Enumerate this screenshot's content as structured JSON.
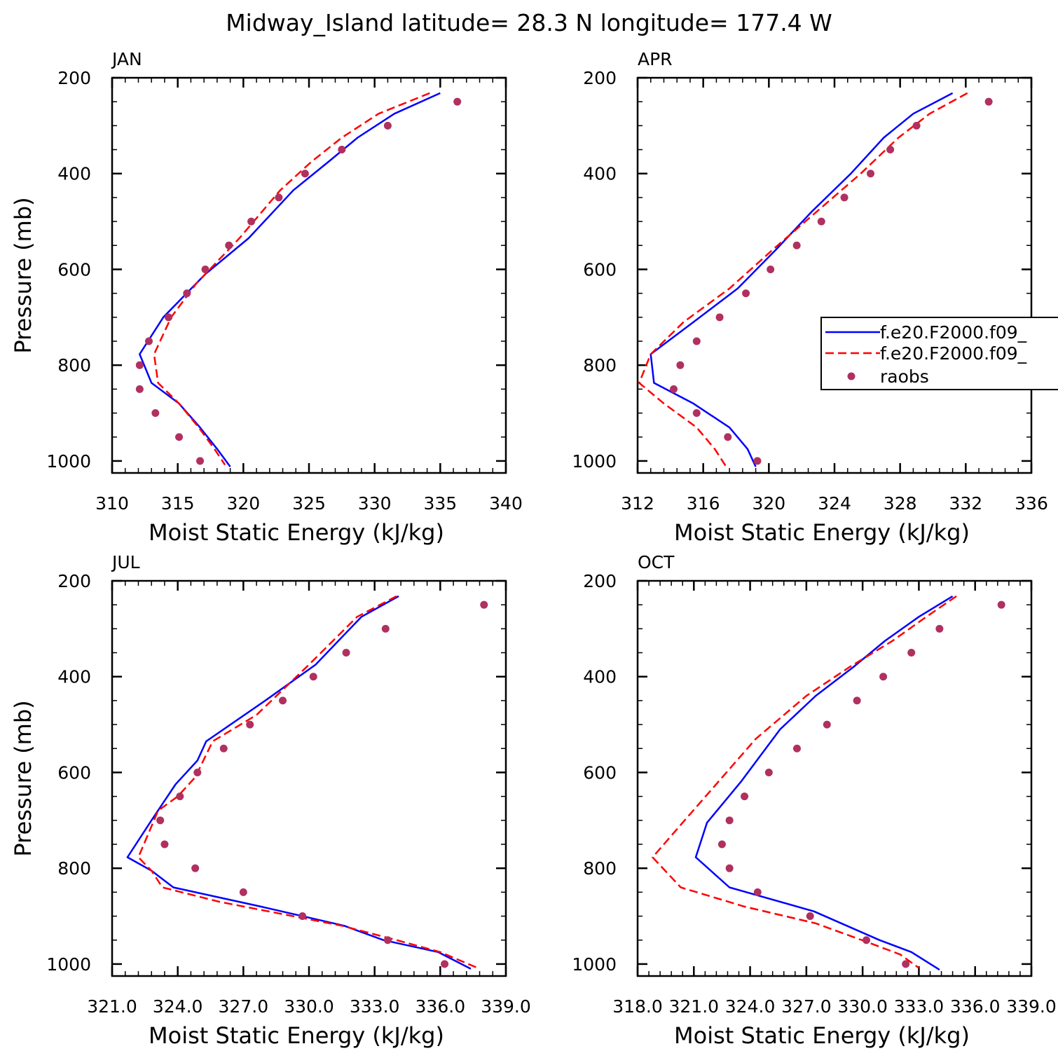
{
  "title": "Midway_Island  latitude= 28.3 N longitude= 177.4 W",
  "colors": {
    "solid": "#0000ff",
    "dashed": "#ff0000",
    "obs": "#b03060"
  },
  "legend": {
    "entries": [
      {
        "label": "f.e20.F2000.f09_",
        "style": "solid"
      },
      {
        "label": "f.e20.F2000.f09_",
        "style": "dashed"
      },
      {
        "label": "raobs",
        "style": "dot"
      }
    ]
  },
  "chart_data": [
    {
      "type": "line",
      "panel": "JAN",
      "xlabel": "Moist Static Energy (kJ/kg)",
      "ylabel": "Pressure (mb)",
      "xlim": [
        310,
        340
      ],
      "ylim": [
        200,
        1025
      ],
      "y_inverted": true,
      "xticks": [
        310,
        315,
        320,
        325,
        330,
        335,
        340
      ],
      "xtick_labels": [
        "310",
        "315",
        "320",
        "325",
        "330",
        "335",
        "340"
      ],
      "yticks": [
        200,
        400,
        600,
        800,
        1000
      ],
      "ytick_labels": [
        "200",
        "400",
        "600",
        "800",
        "1000"
      ],
      "series": [
        {
          "style": "solid",
          "points": [
            [
              335.0,
              232
            ],
            [
              331.5,
              275
            ],
            [
              328.7,
              325
            ],
            [
              326.5,
              375
            ],
            [
              323.8,
              435
            ],
            [
              320.4,
              535
            ],
            [
              317.1,
              610
            ],
            [
              313.9,
              700
            ],
            [
              312.1,
              777
            ],
            [
              313.0,
              837
            ],
            [
              315.1,
              880
            ],
            [
              316.7,
              930
            ],
            [
              318.0,
              975
            ],
            [
              319.0,
              1012
            ]
          ]
        },
        {
          "style": "dashed",
          "points": [
            [
              334.2,
              232
            ],
            [
              330.3,
              275
            ],
            [
              327.5,
              325
            ],
            [
              325.2,
              375
            ],
            [
              322.8,
              435
            ],
            [
              319.7,
              535
            ],
            [
              316.4,
              630
            ],
            [
              314.5,
              700
            ],
            [
              313.2,
              777
            ],
            [
              313.5,
              837
            ],
            [
              315.1,
              880
            ],
            [
              316.6,
              930
            ],
            [
              317.8,
              975
            ],
            [
              318.6,
              1008
            ]
          ]
        },
        {
          "style": "dot",
          "points": [
            [
              336.3,
              250
            ],
            [
              331.0,
              300
            ],
            [
              327.5,
              350
            ],
            [
              324.7,
              400
            ],
            [
              322.7,
              450
            ],
            [
              320.6,
              500
            ],
            [
              318.9,
              550
            ],
            [
              317.1,
              600
            ],
            [
              315.7,
              650
            ],
            [
              314.3,
              700
            ],
            [
              312.8,
              750
            ],
            [
              312.1,
              800
            ],
            [
              312.1,
              850
            ],
            [
              313.3,
              900
            ],
            [
              315.1,
              950
            ],
            [
              316.7,
              1000
            ]
          ]
        }
      ]
    },
    {
      "type": "line",
      "panel": "APR",
      "xlabel": "Moist Static Energy (kJ/kg)",
      "ylabel": "Pressure (mb)",
      "xlim": [
        312,
        336
      ],
      "ylim": [
        200,
        1025
      ],
      "y_inverted": true,
      "xticks": [
        312,
        316,
        320,
        324,
        328,
        332,
        336
      ],
      "xtick_labels": [
        "312",
        "316",
        "320",
        "324",
        "328",
        "332",
        "336"
      ],
      "yticks": [
        200,
        400,
        600,
        800,
        1000
      ],
      "ytick_labels": [
        "200",
        "400",
        "600",
        "800",
        "1000"
      ],
      "series": [
        {
          "style": "solid",
          "points": [
            [
              331.2,
              232
            ],
            [
              328.8,
              275
            ],
            [
              327.0,
              325
            ],
            [
              325.0,
              400
            ],
            [
              322.6,
              480
            ],
            [
              320.4,
              560
            ],
            [
              318.1,
              640
            ],
            [
              315.4,
              710
            ],
            [
              312.8,
              777
            ],
            [
              313.0,
              837
            ],
            [
              315.4,
              880
            ],
            [
              317.6,
              930
            ],
            [
              318.7,
              975
            ],
            [
              319.2,
              1012
            ]
          ]
        },
        {
          "style": "dashed",
          "points": [
            [
              332.1,
              232
            ],
            [
              329.8,
              275
            ],
            [
              327.9,
              325
            ],
            [
              325.6,
              400
            ],
            [
              322.9,
              480
            ],
            [
              320.2,
              560
            ],
            [
              317.6,
              640
            ],
            [
              314.8,
              710
            ],
            [
              312.8,
              777
            ],
            [
              312.1,
              837
            ],
            [
              313.6,
              880
            ],
            [
              315.6,
              930
            ],
            [
              316.7,
              975
            ],
            [
              317.4,
              1012
            ]
          ]
        },
        {
          "style": "dot",
          "points": [
            [
              333.4,
              250
            ],
            [
              329.0,
              300
            ],
            [
              327.4,
              350
            ],
            [
              326.2,
              400
            ],
            [
              324.6,
              450
            ],
            [
              323.2,
              500
            ],
            [
              321.7,
              550
            ],
            [
              320.1,
              600
            ],
            [
              318.6,
              650
            ],
            [
              317.0,
              700
            ],
            [
              315.6,
              750
            ],
            [
              314.6,
              800
            ],
            [
              314.2,
              850
            ],
            [
              315.6,
              900
            ],
            [
              317.5,
              950
            ],
            [
              319.3,
              1000
            ]
          ]
        }
      ]
    },
    {
      "type": "line",
      "panel": "JUL",
      "xlabel": "Moist Static Energy (kJ/kg)",
      "ylabel": "Pressure (mb)",
      "xlim": [
        321.0,
        339.0
      ],
      "ylim": [
        200,
        1025
      ],
      "y_inverted": true,
      "xticks": [
        321.0,
        324.0,
        327.0,
        330.0,
        333.0,
        336.0,
        339.0
      ],
      "xtick_labels": [
        "321.0",
        "324.0",
        "327.0",
        "330.0",
        "333.0",
        "336.0",
        "339.0"
      ],
      "yticks": [
        200,
        400,
        600,
        800,
        1000
      ],
      "ytick_labels": [
        "200",
        "400",
        "600",
        "800",
        "1000"
      ],
      "series": [
        {
          "style": "solid",
          "points": [
            [
              334.1,
              232
            ],
            [
              332.4,
              275
            ],
            [
              330.3,
              375
            ],
            [
              328.0,
              450
            ],
            [
              325.3,
              535
            ],
            [
              324.9,
              575
            ],
            [
              323.9,
              625
            ],
            [
              322.8,
              700
            ],
            [
              321.7,
              777
            ],
            [
              322.8,
              805
            ],
            [
              323.8,
              840
            ],
            [
              327.8,
              880
            ],
            [
              331.6,
              920
            ],
            [
              333.4,
              950
            ],
            [
              335.9,
              975
            ],
            [
              337.4,
              1010
            ]
          ]
        },
        {
          "style": "dashed",
          "points": [
            [
              334.0,
              232
            ],
            [
              332.2,
              275
            ],
            [
              330.0,
              375
            ],
            [
              327.6,
              480
            ],
            [
              325.6,
              535
            ],
            [
              324.8,
              610
            ],
            [
              324.0,
              650
            ],
            [
              323.1,
              680
            ],
            [
              322.2,
              777
            ],
            [
              322.8,
              805
            ],
            [
              323.3,
              840
            ],
            [
              325.9,
              870
            ],
            [
              331.5,
              920
            ],
            [
              334.0,
              950
            ],
            [
              336.0,
              975
            ],
            [
              337.8,
              1010
            ]
          ]
        },
        {
          "style": "dot",
          "points": [
            [
              338.0,
              250
            ],
            [
              333.5,
              300
            ],
            [
              331.7,
              350
            ],
            [
              330.2,
              400
            ],
            [
              328.8,
              450
            ],
            [
              327.3,
              500
            ],
            [
              326.1,
              550
            ],
            [
              324.9,
              600
            ],
            [
              324.1,
              650
            ],
            [
              323.2,
              700
            ],
            [
              323.4,
              750
            ],
            [
              324.8,
              800
            ],
            [
              327.0,
              850
            ],
            [
              329.7,
              900
            ],
            [
              333.6,
              950
            ],
            [
              336.2,
              1000
            ]
          ]
        }
      ]
    },
    {
      "type": "line",
      "panel": "OCT",
      "xlabel": "Moist Static Energy (kJ/kg)",
      "ylabel": "Pressure (mb)",
      "xlim": [
        318.0,
        339.0
      ],
      "ylim": [
        200,
        1025
      ],
      "y_inverted": true,
      "xticks": [
        318.0,
        321.0,
        324.0,
        327.0,
        330.0,
        333.0,
        336.0,
        339.0
      ],
      "xtick_labels": [
        "318.0",
        "321.0",
        "324.0",
        "327.0",
        "330.0",
        "333.0",
        "336.0",
        "339.0"
      ],
      "yticks": [
        200,
        400,
        600,
        800,
        1000
      ],
      "ytick_labels": [
        "200",
        "400",
        "600",
        "800",
        "1000"
      ],
      "series": [
        {
          "style": "solid",
          "points": [
            [
              334.8,
              232
            ],
            [
              333.0,
              275
            ],
            [
              331.2,
              325
            ],
            [
              329.5,
              380
            ],
            [
              327.5,
              440
            ],
            [
              325.6,
              510
            ],
            [
              323.5,
              620
            ],
            [
              321.7,
              705
            ],
            [
              321.1,
              777
            ],
            [
              322.9,
              840
            ],
            [
              327.4,
              890
            ],
            [
              330.9,
              950
            ],
            [
              332.6,
              975
            ],
            [
              334.1,
              1012
            ]
          ]
        },
        {
          "style": "dashed",
          "points": [
            [
              335.0,
              232
            ],
            [
              333.4,
              275
            ],
            [
              331.6,
              325
            ],
            [
              329.3,
              380
            ],
            [
              327.0,
              440
            ],
            [
              324.3,
              530
            ],
            [
              320.4,
              705
            ],
            [
              318.8,
              777
            ],
            [
              320.3,
              840
            ],
            [
              323.7,
              880
            ],
            [
              327.5,
              915
            ],
            [
              330.3,
              955
            ],
            [
              332.0,
              980
            ],
            [
              333.0,
              1008
            ]
          ]
        },
        {
          "style": "dot",
          "points": [
            [
              337.4,
              250
            ],
            [
              334.1,
              300
            ],
            [
              332.6,
              350
            ],
            [
              331.1,
              400
            ],
            [
              329.7,
              450
            ],
            [
              328.1,
              500
            ],
            [
              326.5,
              550
            ],
            [
              325.0,
              600
            ],
            [
              323.7,
              650
            ],
            [
              322.9,
              700
            ],
            [
              322.5,
              750
            ],
            [
              322.9,
              800
            ],
            [
              324.4,
              850
            ],
            [
              327.2,
              900
            ],
            [
              330.2,
              950
            ],
            [
              332.3,
              1000
            ]
          ]
        }
      ]
    }
  ]
}
